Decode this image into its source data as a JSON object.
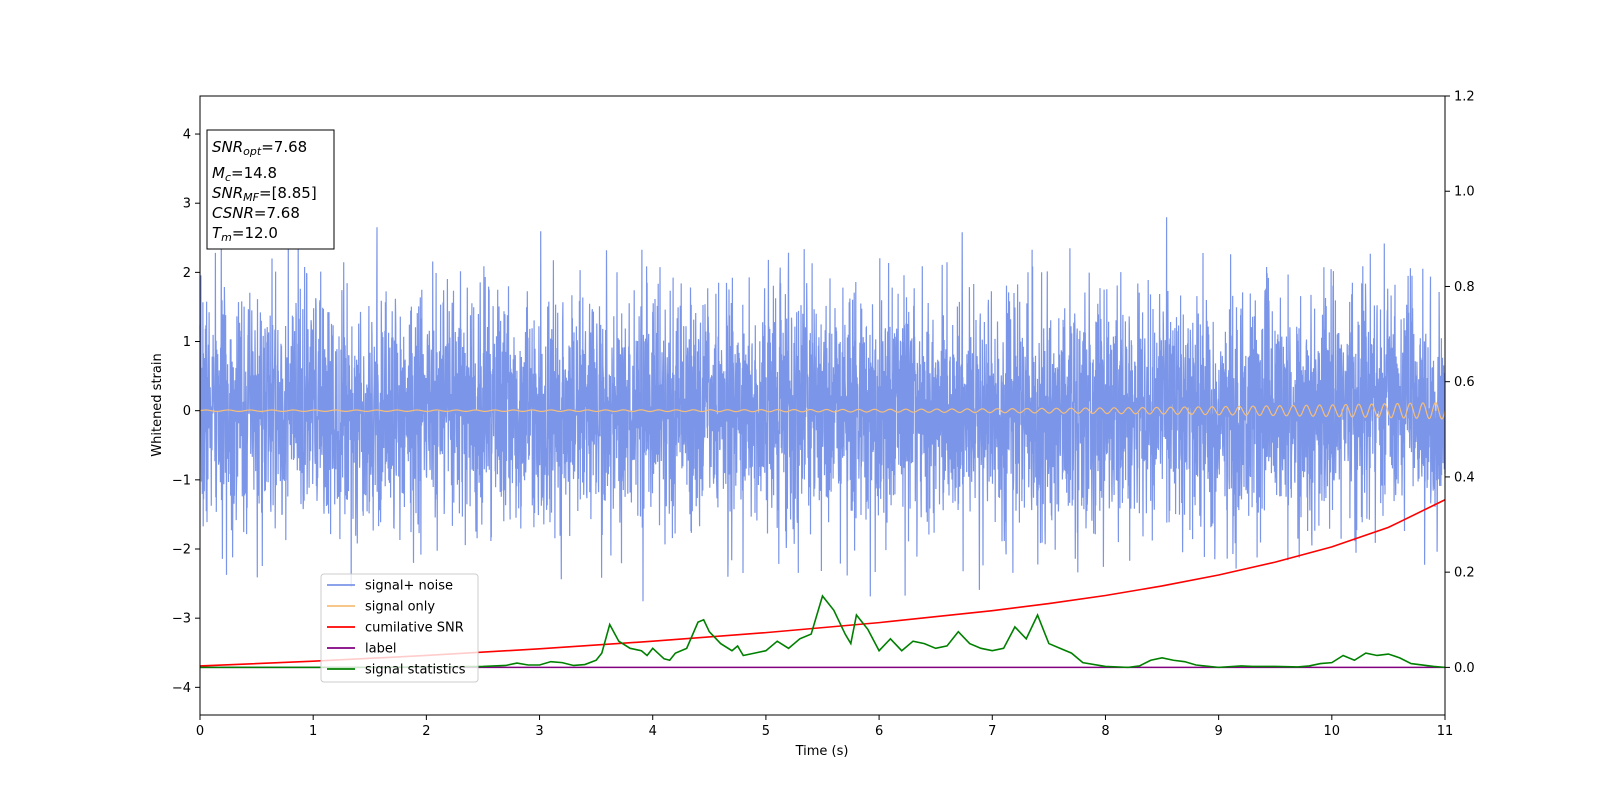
{
  "chart_data": {
    "type": "line",
    "xlabel": "Time (s)",
    "ylabel": "Whitened strain",
    "xlim": [
      0,
      11
    ],
    "ylim": [
      -4.4,
      4.55
    ],
    "y2lim": [
      -0.1,
      1.2
    ],
    "xticks": [
      "0",
      "1",
      "2",
      "3",
      "4",
      "5",
      "6",
      "7",
      "8",
      "9",
      "10",
      "11"
    ],
    "yticks": [
      "4",
      "3",
      "2",
      "1",
      "0",
      "−1",
      "−2",
      "−3",
      "−4"
    ],
    "y2ticks": [
      "0.0",
      "0.2",
      "0.4",
      "0.6",
      "0.8",
      "1.0",
      "1.2"
    ],
    "grid": false,
    "legend_position": "lower-left",
    "noise": {
      "sample_rate": 500,
      "sigma": 0.85,
      "seed": 7
    },
    "annotation": {
      "snr_opt_base": "SNR",
      "snr_opt_sub": "opt",
      "snr_opt_value": "=7.68",
      "mc_base": "M",
      "mc_sub": "c",
      "mc_value": "=14.8",
      "snr_mf_base": "SNR",
      "snr_mf_sub": "MF",
      "snr_mf_value": "=[8.85]",
      "csnr_base": "CSNR",
      "csnr_value": "=7.68",
      "tm_base": "T",
      "tm_sub": "m",
      "tm_value": "=12.0"
    },
    "series": [
      {
        "name": "signal+ noise",
        "axis": "left",
        "color": "#7b95e8",
        "kind": "noise"
      },
      {
        "name": "signal only",
        "axis": "left",
        "color": "#f5be7a",
        "kind": "chirp",
        "amp_start": 0.01,
        "amp_end": 0.12,
        "f_start": 5,
        "f_end": 9
      },
      {
        "name": "cumilative SNR",
        "axis": "right",
        "color": "#ff0000",
        "x": [
          0,
          1,
          2,
          3,
          4,
          5,
          6,
          7,
          7.5,
          8,
          8.5,
          9,
          9.5,
          10,
          10.5,
          11
        ],
        "y": [
          0.003,
          0.013,
          0.025,
          0.039,
          0.055,
          0.073,
          0.094,
          0.119,
          0.134,
          0.151,
          0.171,
          0.194,
          0.221,
          0.253,
          0.294,
          0.352
        ]
      },
      {
        "name": "label",
        "axis": "right",
        "color": "#800080",
        "x": [
          0,
          11
        ],
        "y": [
          0.0,
          0.0
        ]
      },
      {
        "name": "signal statistics",
        "axis": "right",
        "color": "#008000",
        "x": [
          0,
          0.5,
          1,
          1.5,
          2,
          2.5,
          2.7,
          2.8,
          2.9,
          3.0,
          3.1,
          3.2,
          3.3,
          3.4,
          3.5,
          3.55,
          3.62,
          3.7,
          3.8,
          3.9,
          3.95,
          4.0,
          4.1,
          4.15,
          4.2,
          4.3,
          4.4,
          4.45,
          4.5,
          4.6,
          4.7,
          4.75,
          4.8,
          4.9,
          5.0,
          5.1,
          5.2,
          5.3,
          5.4,
          5.5,
          5.6,
          5.7,
          5.75,
          5.8,
          5.9,
          6.0,
          6.1,
          6.2,
          6.3,
          6.4,
          6.5,
          6.6,
          6.7,
          6.8,
          6.9,
          7.0,
          7.1,
          7.2,
          7.3,
          7.4,
          7.5,
          7.6,
          7.7,
          7.8,
          8.0,
          8.2,
          8.3,
          8.4,
          8.5,
          8.6,
          8.7,
          8.8,
          9.0,
          9.2,
          9.3,
          9.5,
          9.7,
          9.8,
          9.9,
          10.0,
          10.1,
          10.2,
          10.3,
          10.4,
          10.5,
          10.6,
          10.7,
          10.9,
          11.0
        ],
        "y": [
          0.0,
          0.0,
          0.0,
          0.0,
          0.001,
          0.002,
          0.004,
          0.009,
          0.005,
          0.005,
          0.012,
          0.01,
          0.004,
          0.006,
          0.015,
          0.03,
          0.09,
          0.055,
          0.04,
          0.035,
          0.025,
          0.04,
          0.018,
          0.015,
          0.03,
          0.04,
          0.095,
          0.1,
          0.075,
          0.05,
          0.035,
          0.045,
          0.025,
          0.03,
          0.035,
          0.055,
          0.04,
          0.06,
          0.07,
          0.15,
          0.12,
          0.07,
          0.05,
          0.11,
          0.08,
          0.035,
          0.06,
          0.035,
          0.055,
          0.05,
          0.04,
          0.045,
          0.075,
          0.05,
          0.04,
          0.035,
          0.04,
          0.085,
          0.06,
          0.11,
          0.05,
          0.04,
          0.03,
          0.01,
          0.002,
          0.0,
          0.003,
          0.015,
          0.02,
          0.015,
          0.012,
          0.005,
          0.0,
          0.003,
          0.002,
          0.002,
          0.001,
          0.003,
          0.008,
          0.01,
          0.025,
          0.015,
          0.03,
          0.025,
          0.028,
          0.02,
          0.008,
          0.002,
          0.0
        ]
      }
    ]
  }
}
